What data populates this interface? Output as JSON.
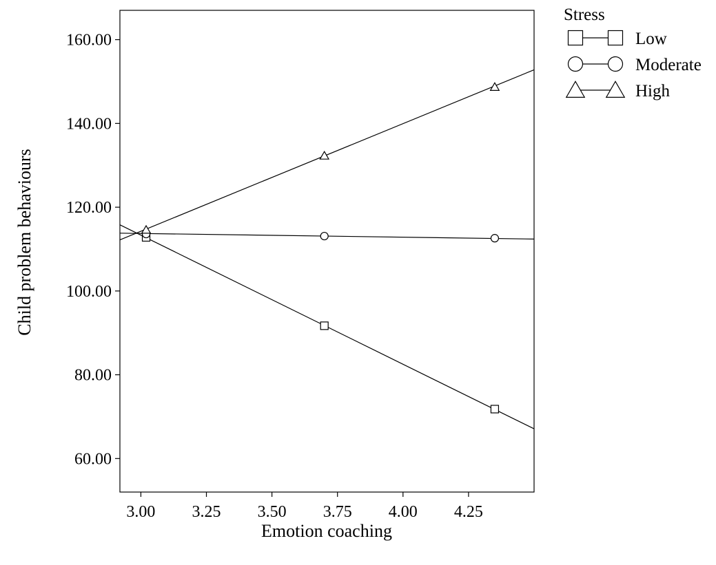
{
  "chart_data": {
    "type": "line",
    "title": "",
    "xlabel": "Emotion coaching",
    "ylabel": "Child problem behaviours",
    "xlim": [
      2.92,
      4.5
    ],
    "ylim": [
      52,
      167
    ],
    "x_ticks": [
      3.0,
      3.25,
      3.5,
      3.75,
      4.0,
      4.25
    ],
    "x_tick_labels": [
      "3.00",
      "3.25",
      "3.50",
      "3.75",
      "4.00",
      "4.25"
    ],
    "y_ticks": [
      60,
      80,
      100,
      120,
      140,
      160
    ],
    "y_tick_labels": [
      "60.00",
      "80.00",
      "100.00",
      "120.00",
      "140.00",
      "160.00"
    ],
    "grid": false,
    "legend": {
      "title": "Stress",
      "position": "outside-top-right"
    },
    "series": [
      {
        "name": "Low",
        "marker": "square",
        "color": "#000000",
        "points": [
          [
            3.02,
            112.8
          ],
          [
            3.7,
            91.7
          ],
          [
            4.35,
            71.8
          ]
        ],
        "fit_line": [
          [
            2.92,
            115.8
          ],
          [
            4.5,
            67.1
          ]
        ]
      },
      {
        "name": "Moderate",
        "marker": "circle",
        "color": "#000000",
        "points": [
          [
            3.02,
            113.6
          ],
          [
            3.7,
            113.1
          ],
          [
            4.35,
            112.6
          ]
        ],
        "fit_line": [
          [
            2.92,
            113.8
          ],
          [
            4.5,
            112.4
          ]
        ]
      },
      {
        "name": "High",
        "marker": "triangle",
        "color": "#000000",
        "points": [
          [
            3.02,
            114.6
          ],
          [
            3.7,
            132.3
          ],
          [
            4.35,
            148.7
          ]
        ],
        "fit_line": [
          [
            2.92,
            112.2
          ],
          [
            4.5,
            152.8
          ]
        ]
      }
    ]
  }
}
